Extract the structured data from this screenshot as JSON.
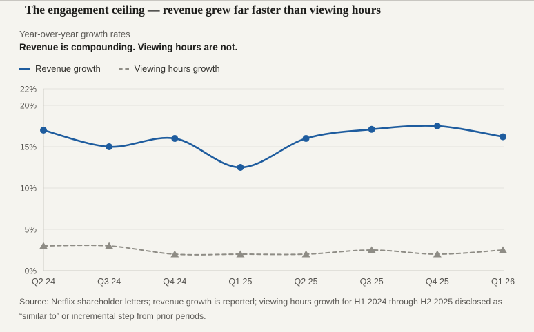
{
  "header": {
    "title": "The engagement ceiling — revenue grew far faster than viewing hours",
    "subtitle": "Year-over-year growth rates",
    "tagline": "Revenue is compounding. Viewing hours are not."
  },
  "legend": [
    {
      "label": "Revenue growth",
      "color": "#1e5c9e",
      "style": "solid"
    },
    {
      "label": "Viewing hours growth",
      "color": "#8e8c85",
      "style": "dashed"
    }
  ],
  "chart_data": {
    "type": "line",
    "categories": [
      "Q2 24",
      "Q3 24",
      "Q4 24",
      "Q1 25",
      "Q2 25",
      "Q3 25",
      "Q4 25",
      "Q1 26"
    ],
    "series": [
      {
        "name": "Revenue growth",
        "values": [
          17,
          15,
          16,
          12.5,
          16,
          17.1,
          17.5,
          16.2
        ],
        "color": "#1e5c9e",
        "line": "solid",
        "marker": "circle"
      },
      {
        "name": "Viewing hours growth",
        "values": [
          3,
          3,
          2,
          2,
          2,
          2.5,
          2,
          2.5
        ],
        "color": "#8e8c85",
        "line": "dashed",
        "marker": "triangle"
      }
    ],
    "title": "The engagement ceiling — revenue grew far faster than viewing hours",
    "xlabel": "",
    "ylabel": "",
    "ylim": [
      0,
      22
    ],
    "yticks": [
      {
        "value": 0,
        "label": "0%"
      },
      {
        "value": 5,
        "label": "5%"
      },
      {
        "value": 10,
        "label": "10%"
      },
      {
        "value": 15,
        "label": "15%"
      },
      {
        "value": 20,
        "label": "20%"
      },
      {
        "value": 22,
        "label": "22%"
      }
    ],
    "grid": true,
    "legend_position": "top-left"
  },
  "source": {
    "line1": "Source: Netflix shareholder letters; revenue growth is reported; viewing hours growth for H1 2024 through H2 2025 disclosed as",
    "line2": "“similar to” or incremental step from prior periods."
  },
  "theme": {
    "background": "#f5f4ef",
    "grid": "#e4e2dc",
    "axis": "#cdcbc5",
    "text_muted": "#55534f"
  }
}
